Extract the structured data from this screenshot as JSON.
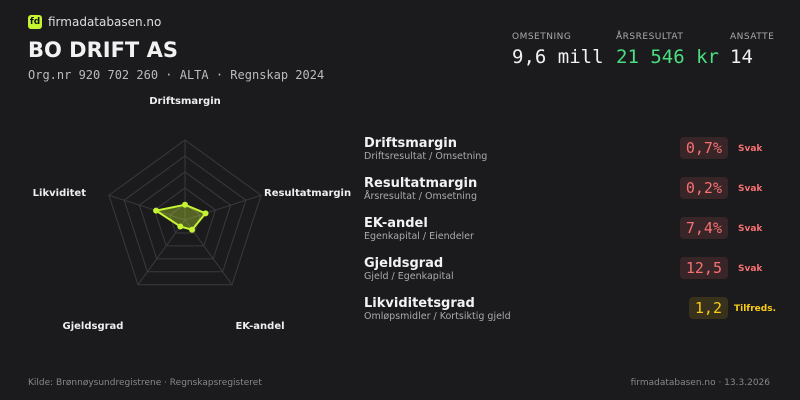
{
  "header": {
    "logo": "fd",
    "brand": "firmadatabasen.no",
    "title": "BO DRIFT AS",
    "subtitle": "Org.nr 920 702 260 · ALTA · Regnskap 2024"
  },
  "metrics": [
    {
      "label": "OMSETNING",
      "value": "9,6 mill",
      "color": "#f2f2f2"
    },
    {
      "label": "ÅRSRESULTAT",
      "value": "21 546 kr",
      "color": "#4ade80"
    },
    {
      "label": "ANSATTE",
      "value": "14",
      "color": "#f2f2f2"
    }
  ],
  "chart_data": {
    "type": "radar",
    "categories": [
      "Driftsmargin",
      "Resultatmargin",
      "EK-andel",
      "Gjeldsgrad",
      "Likviditet"
    ],
    "values": [
      19,
      27,
      15,
      10,
      38
    ],
    "color": "#c6f432",
    "ylim": [
      0,
      100
    ],
    "yticks": [
      20,
      40,
      60,
      80,
      100
    ],
    "grid": true
  },
  "ratios": [
    {
      "name": "Driftsmargin",
      "formula": "Driftsresultat / Omsetning",
      "value": "0,7%",
      "rating": "Svak",
      "color": "#f87171"
    },
    {
      "name": "Resultatmargin",
      "formula": "Årsresultat / Omsetning",
      "value": "0,2%",
      "rating": "Svak",
      "color": "#f87171"
    },
    {
      "name": "EK-andel",
      "formula": "Egenkapital / Eiendeler",
      "value": "7,4%",
      "rating": "Svak",
      "color": "#f87171"
    },
    {
      "name": "Gjeldsgrad",
      "formula": "Gjeld / Egenkapital",
      "value": "12,5",
      "rating": "Svak",
      "color": "#f87171"
    },
    {
      "name": "Likviditetsgrad",
      "formula": "Omløpsmidler / Kortsiktig gjeld",
      "value": "1,2",
      "rating": "Tilfreds.",
      "color": "#facc15"
    }
  ],
  "footer": {
    "source": "Kilde: Brønnøysundregistrene · Regnskapsregisteret",
    "site": "firmadatabasen.no · 13.3.2026"
  }
}
